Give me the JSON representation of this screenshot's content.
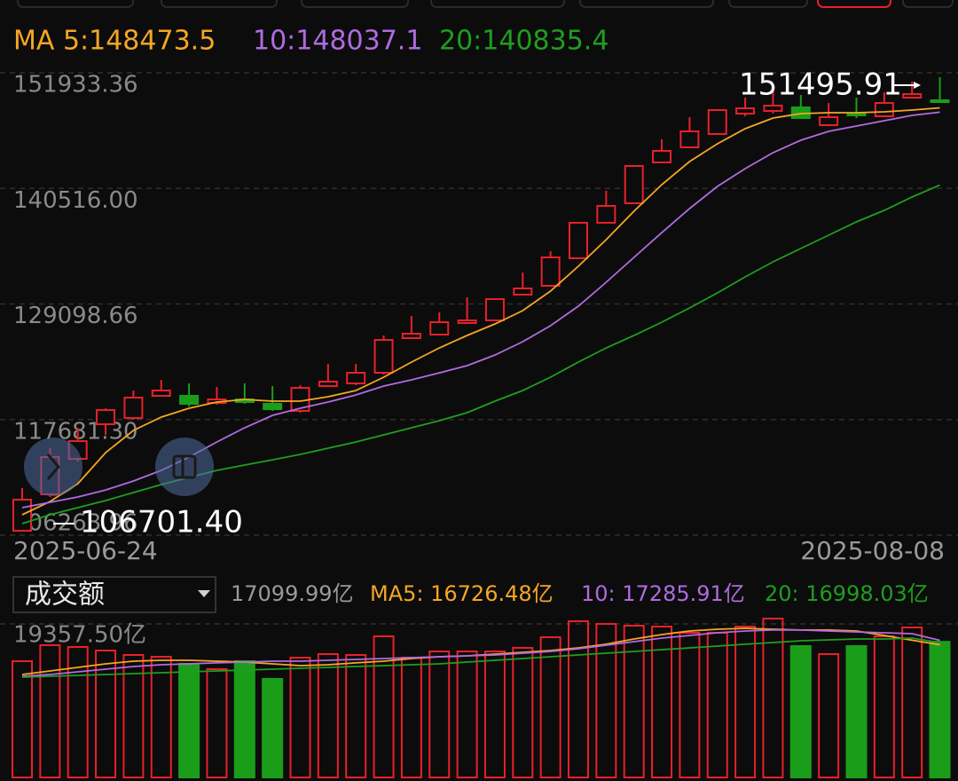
{
  "chart_data": [
    {
      "type": "candlestick",
      "up_color": "#e8202a",
      "down_color": "#1a9e1a",
      "categories": [
        "2025-06-24",
        null,
        null,
        null,
        null,
        null,
        null,
        null,
        null,
        null,
        null,
        null,
        null,
        null,
        null,
        null,
        null,
        null,
        null,
        null,
        null,
        null,
        null,
        null,
        null,
        null,
        null,
        null,
        null,
        null,
        null,
        null,
        null,
        "2025-08-08"
      ],
      "open": [
        106700,
        110294,
        113801,
        117220,
        117833,
        120025,
        120025,
        119323,
        119674,
        119236,
        118535,
        120989,
        121252,
        122304,
        125723,
        126073,
        127213,
        127476,
        130018,
        130895,
        133612,
        137118,
        139047,
        143079,
        144570,
        145884,
        147901,
        148164,
        148514,
        146761,
        147901,
        147638,
        149479,
        149216
      ],
      "close": [
        109769,
        113976,
        115554,
        118622,
        119849,
        120551,
        119236,
        119674,
        119411,
        118710,
        120814,
        121427,
        122304,
        125547,
        126161,
        127301,
        127476,
        129580,
        130632,
        133700,
        137118,
        138784,
        142729,
        144219,
        146147,
        148251,
        148427,
        148690,
        147462,
        147550,
        147725,
        148953,
        149829,
        149040
      ],
      "high": [
        110908,
        114853,
        116869,
        118798,
        120551,
        121603,
        121252,
        120901,
        121252,
        120989,
        121077,
        123181,
        123181,
        125986,
        127914,
        128265,
        129755,
        129667,
        132209,
        134313,
        137206,
        140274,
        142816,
        145358,
        147550,
        148339,
        149479,
        150530,
        149741,
        148953,
        149479,
        150004,
        151056,
        151495.91
      ],
      "low": [
        106701.4,
        110032,
        113538,
        116168,
        117658,
        120025,
        118973,
        119148,
        119236,
        118535,
        118359,
        120901,
        121077,
        122129,
        125635,
        125986,
        127125,
        127388,
        129930,
        130807,
        133524,
        137031,
        138959,
        142992,
        144482,
        145797,
        147638,
        147901,
        147462,
        146673,
        147462,
        147550,
        149391,
        148953
      ],
      "lines": [
        {
          "name": "MA 5:148473.5",
          "color": "#f5a623",
          "values": [
            108280,
            109590,
            111350,
            114420,
            116610,
            117920,
            118800,
            119410,
            119670,
            119500,
            119500,
            119940,
            120550,
            121870,
            123360,
            124760,
            125990,
            127130,
            128440,
            130370,
            132820,
            135450,
            138260,
            140890,
            143170,
            144920,
            146410,
            147460,
            147900,
            147990,
            147990,
            148080,
            148250,
            148473.5
          ]
        },
        {
          "name": "10:148037.1",
          "color": "#b06be0",
          "values": [
            108980,
            109510,
            110030,
            110730,
            111610,
            112660,
            113980,
            115470,
            116870,
            118100,
            118800,
            119410,
            120110,
            120990,
            121600,
            122300,
            123010,
            124060,
            125370,
            126950,
            128880,
            131250,
            133700,
            136150,
            138520,
            140710,
            142470,
            144040,
            145270,
            146150,
            146670,
            147200,
            147730,
            148037.1
          ]
        },
        {
          "name": "20:140835.4",
          "color": "#1f9e1f",
          "values": [
            107400,
            108280,
            108980,
            109680,
            110470,
            111260,
            111960,
            112660,
            113190,
            113710,
            114240,
            114850,
            115470,
            116170,
            116870,
            117570,
            118360,
            119500,
            120550,
            121870,
            123360,
            124760,
            125990,
            127300,
            128700,
            130190,
            131770,
            133260,
            134580,
            135890,
            137210,
            138350,
            139660,
            140835.4
          ]
        }
      ],
      "ylim": [
        106263.96,
        151933.36
      ],
      "yticks": [
        151933.36,
        {
          "value": 140516.0,
          "label": "140516.00"
        },
        129098.66,
        {
          "value": 117681.3,
          "label": "117681.30"
        },
        106263.96
      ],
      "grid": true,
      "annotations": [
        151495.91,
        {
          "value": 106701.4,
          "label": "106701.40"
        }
      ]
    },
    {
      "type": "bar",
      "title": "成交额",
      "values": [
        14659,
        16673,
        16449,
        16002,
        15442,
        15218,
        14323,
        13652,
        14659,
        12421,
        15107,
        15554,
        15442,
        17792,
        15107,
        15890,
        15890,
        15890,
        16337,
        17680,
        19694,
        19359,
        19135,
        19023,
        18240,
        18240,
        19023,
        20030,
        16561,
        15554,
        16561,
        17792,
        18911,
        17099.99
      ],
      "current": {
        "value": 17099.99,
        "label": "17099.99亿"
      },
      "lines": [
        {
          "name": "MA5: 16726.48亿",
          "color": "#f5a623",
          "values": [
            12980,
            13430,
            13880,
            14320,
            14660,
            14770,
            14770,
            14660,
            14550,
            14320,
            14100,
            14210,
            14440,
            14660,
            14990,
            15220,
            15330,
            15550,
            15780,
            16000,
            16340,
            16790,
            17460,
            18020,
            18460,
            18690,
            18800,
            18690,
            18580,
            18580,
            18460,
            17900,
            17300,
            16726.48
          ]
        },
        {
          "name": "10: 17285.91亿",
          "color": "#b06be0",
          "values": [
            12760,
            12980,
            13320,
            13650,
            13990,
            14210,
            14320,
            14440,
            14550,
            14660,
            14660,
            14770,
            14880,
            14990,
            15110,
            15220,
            15330,
            15440,
            15670,
            15890,
            16230,
            16670,
            17120,
            17570,
            17900,
            18240,
            18460,
            18580,
            18580,
            18460,
            18350,
            18240,
            18130,
            17285.91
          ]
        },
        {
          "name": "20: 16998.03亿",
          "color": "#1f9e1f",
          "values": [
            12640,
            12760,
            12870,
            12980,
            13090,
            13200,
            13320,
            13430,
            13540,
            13650,
            13760,
            13880,
            13990,
            14100,
            14210,
            14320,
            14550,
            14770,
            14990,
            15220,
            15440,
            15670,
            15890,
            16110,
            16340,
            16560,
            16790,
            17010,
            17230,
            17340,
            17460,
            17460,
            17570,
            16998.03
          ]
        }
      ],
      "ylim": [
        0,
        19357.5
      ],
      "yticks": [
        {
          "value": 19357.5,
          "label": "19357.50亿"
        }
      ]
    }
  ]
}
